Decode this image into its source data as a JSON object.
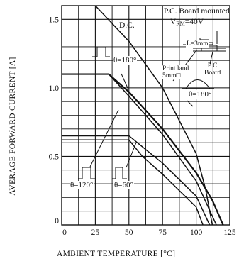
{
  "chart_data": {
    "type": "line",
    "xlabel": "AMBIENT TEMPERATURE",
    "xunit": "[°C]",
    "ylabel": "AVERAGE FORWARD CURRENT",
    "yunit": "[A]",
    "xlim": [
      0,
      125
    ],
    "ylim": [
      0,
      1.6
    ],
    "xticks": [
      "0",
      "25",
      "50",
      "75",
      "100",
      "125"
    ],
    "xtick_values": [
      0,
      25,
      50,
      75,
      100,
      125
    ],
    "yticks": [
      "0",
      "0.5",
      "1.0",
      "1.5"
    ],
    "ytick_values": [
      0,
      0.5,
      1.0,
      1.5
    ],
    "grid": true,
    "series": [
      {
        "key": "dc",
        "x": [
          25,
          50,
          75,
          100,
          107,
          112
        ],
        "y": [
          1.6,
          1.34,
          1.0,
          0.52,
          0.26,
          0
        ]
      },
      {
        "key": "sine180",
        "x": [
          0,
          35,
          50,
          75,
          100,
          112,
          120
        ],
        "y": [
          1.1,
          1.1,
          0.97,
          0.7,
          0.38,
          0.18,
          0
        ]
      },
      {
        "key": "sq180",
        "x": [
          0,
          35,
          50,
          75,
          100,
          108,
          115
        ],
        "y": [
          1.1,
          1.1,
          0.94,
          0.66,
          0.32,
          0.15,
          0
        ]
      },
      {
        "key": "sq120",
        "x": [
          0,
          50,
          60,
          75,
          100,
          110
        ],
        "y": [
          0.65,
          0.65,
          0.57,
          0.45,
          0.21,
          0
        ]
      },
      {
        "key": "sq60",
        "x": [
          0,
          50,
          60,
          75,
          100,
          105
        ],
        "y": [
          0.62,
          0.62,
          0.5,
          0.37,
          0.13,
          0
        ]
      }
    ]
  },
  "annotations": {
    "board_title": "P.C. Board mounted",
    "vrm": "V",
    "vrm_sub": "RM",
    "vrm_value": "=40V",
    "dc": "D.C.",
    "lead_length": "L=3mm",
    "pc_board": "P C\nBoard",
    "print_land": "Print land\n5mm□",
    "theta180_square": "θ=180°",
    "theta180_sine": "θ=180°",
    "theta120": "θ=120°",
    "theta60": "θ=60°"
  }
}
